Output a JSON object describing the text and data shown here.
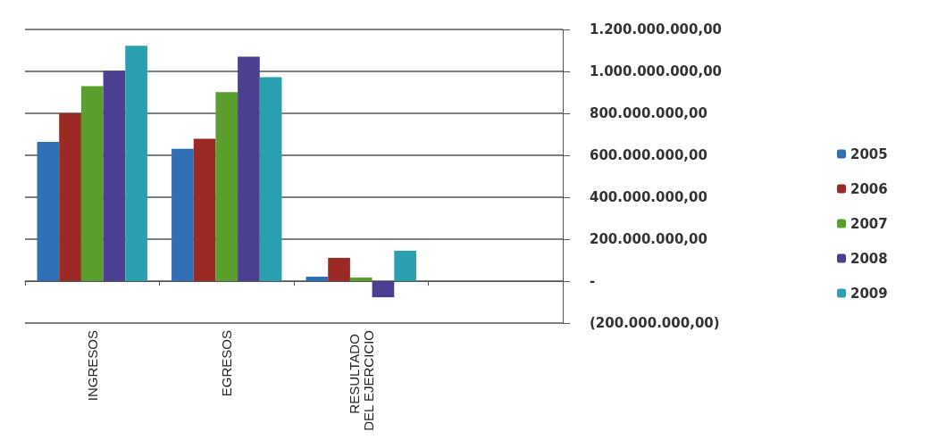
{
  "chart_data": {
    "type": "bar",
    "categories": [
      "INGRESOS",
      "EGRESOS",
      "RESULTADO DEL EJERCICIO",
      null
    ],
    "series": [
      {
        "name": "2005",
        "color": "#2e6fb5",
        "values": [
          664000000,
          631000000,
          21000000,
          null
        ]
      },
      {
        "name": "2006",
        "color": "#9b2a24",
        "values": [
          800000000,
          679000000,
          111000000,
          null
        ]
      },
      {
        "name": "2007",
        "color": "#5a9e2e",
        "values": [
          930000000,
          901000000,
          17000000,
          null
        ]
      },
      {
        "name": "2008",
        "color": "#4b3f92",
        "values": [
          1003000000,
          1070000000,
          -77000000,
          null
        ]
      },
      {
        "name": "2009",
        "color": "#2aa0b0",
        "values": [
          1122000000,
          972000000,
          145000000,
          null
        ]
      }
    ],
    "ylim": [
      -200000000,
      1200000000
    ],
    "yticks": [
      {
        "value": -200000000,
        "label": "(200.000.000,00)"
      },
      {
        "value": 0,
        "label": "-"
      },
      {
        "value": 200000000,
        "label": "200.000.000,00"
      },
      {
        "value": 400000000,
        "label": "400.000.000,00"
      },
      {
        "value": 600000000,
        "label": "600.000.000,00"
      },
      {
        "value": 800000000,
        "label": "800.000.000,00"
      },
      {
        "value": 1000000000,
        "label": "1.000.000.000,00"
      },
      {
        "value": 1200000000,
        "label": "1.200.000.000,00"
      }
    ],
    "grid": "y",
    "legend": "right"
  }
}
